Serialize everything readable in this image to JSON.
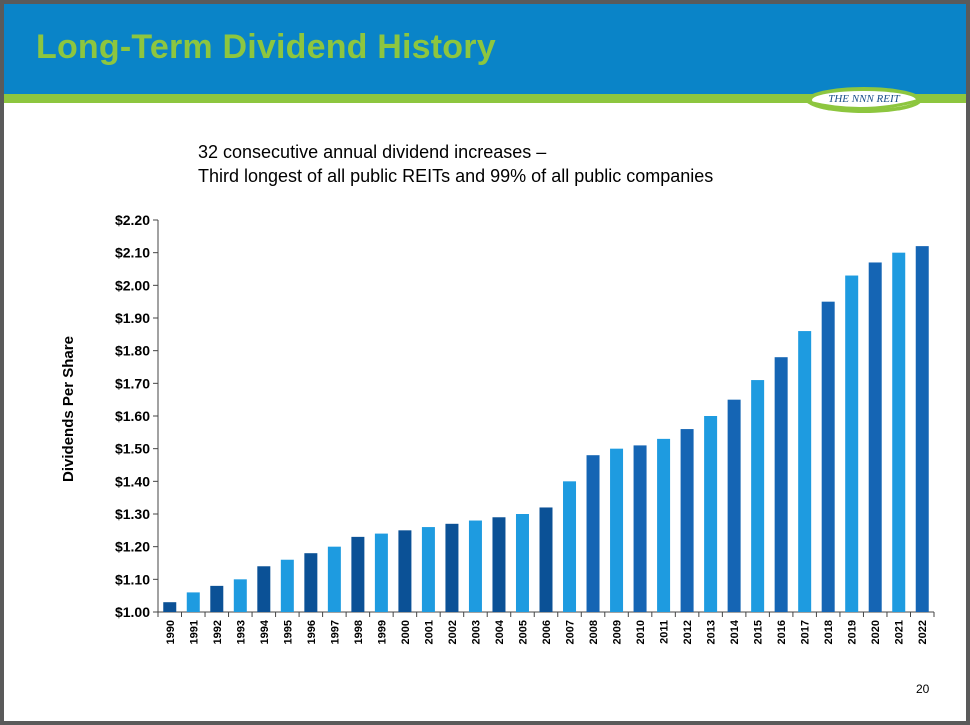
{
  "slide": {
    "title": "Long-Term Dividend History",
    "logo_text": "THE NNN REIT",
    "subtitle_lines": [
      "32 consecutive annual dividend increases –",
      "Third longest of all public REITs and 99% of all public companies"
    ],
    "page_number": "20"
  },
  "colors": {
    "header_blue": "#0a84c8",
    "title_green": "#8dc63f",
    "bar_dark": "#1565b4",
    "bar_light": "#1e9be0",
    "bar_darkest": "#0b5196"
  },
  "chart_data": {
    "type": "bar",
    "title": "",
    "xlabel": "",
    "ylabel": "Dividends Per Share",
    "ylim": [
      1.0,
      2.2
    ],
    "y_ticks": [
      1.0,
      1.1,
      1.2,
      1.3,
      1.4,
      1.5,
      1.6,
      1.7,
      1.8,
      1.9,
      2.0,
      2.1,
      2.2
    ],
    "y_tick_labels": [
      "$1.00",
      "$1.10",
      "$1.20",
      "$1.30",
      "$1.40",
      "$1.50",
      "$1.60",
      "$1.70",
      "$1.80",
      "$1.90",
      "$2.00",
      "$2.10",
      "$2.20"
    ],
    "categories": [
      "1990",
      "1991",
      "1992",
      "1993",
      "1994",
      "1995",
      "1996",
      "1997",
      "1998",
      "1999",
      "2000",
      "2001",
      "2002",
      "2003",
      "2004",
      "2005",
      "2006",
      "2007",
      "2008",
      "2009",
      "2010",
      "2011",
      "2012",
      "2013",
      "2014",
      "2015",
      "2016",
      "2017",
      "2018",
      "2019",
      "2020",
      "2021",
      "2022"
    ],
    "values": [
      1.03,
      1.06,
      1.08,
      1.1,
      1.14,
      1.16,
      1.18,
      1.2,
      1.23,
      1.24,
      1.25,
      1.26,
      1.27,
      1.28,
      1.29,
      1.3,
      1.32,
      1.4,
      1.48,
      1.5,
      1.51,
      1.53,
      1.56,
      1.6,
      1.65,
      1.71,
      1.78,
      1.86,
      1.95,
      2.03,
      2.07,
      2.1,
      2.12
    ],
    "bar_colors": [
      "#0b5196",
      "#1e9be0",
      "#0b5196",
      "#1e9be0",
      "#0b5196",
      "#1e9be0",
      "#0b5196",
      "#1e9be0",
      "#0b5196",
      "#1e9be0",
      "#0b5196",
      "#1e9be0",
      "#0b5196",
      "#1e9be0",
      "#0b5196",
      "#1e9be0",
      "#0b5196",
      "#1e9be0",
      "#1565b4",
      "#1e9be0",
      "#1565b4",
      "#1e9be0",
      "#1565b4",
      "#1e9be0",
      "#1565b4",
      "#1e9be0",
      "#1565b4",
      "#1e9be0",
      "#1565b4",
      "#1e9be0",
      "#1565b4",
      "#1e9be0",
      "#1565b4"
    ],
    "grid": false,
    "legend": "none"
  }
}
